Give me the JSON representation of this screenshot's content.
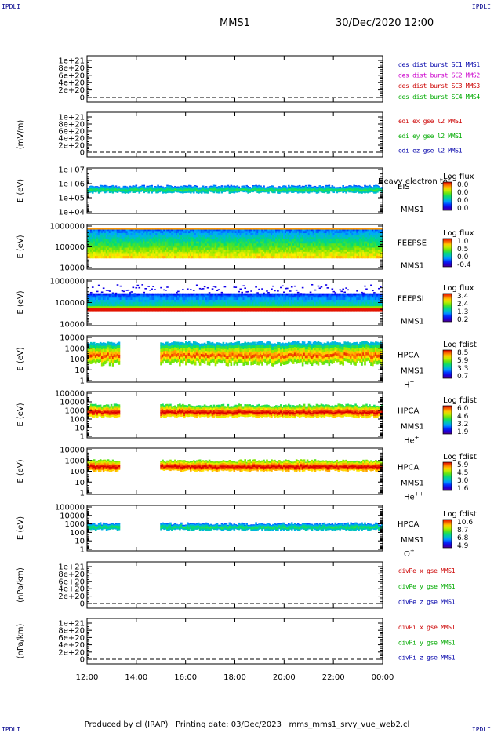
{
  "corner_label": "IPDLI",
  "header": {
    "mission": "MMS1",
    "datetime": "30/Dec/2020 12:00"
  },
  "footer": {
    "text": "Produced by cl (IRAP)   Printing date: 03/Dec/2023   mms_mms1_srvy_vue_web2.cl"
  },
  "chart_data": {
    "type": "heatmap",
    "x_ticks": [
      "12:00",
      "14:00",
      "16:00",
      "18:00",
      "20:00",
      "22:00",
      "00:00"
    ],
    "panels": [
      {
        "kind": "line",
        "ylabel": "",
        "yticks": [
          "1e+21",
          "8e+20",
          "6e+20",
          "4e+20",
          "2e+20",
          "0"
        ],
        "legend": [
          {
            "text": "des dist burst SC1 MMS1",
            "color": "#0000aa"
          },
          {
            "text": "des dist burst SC2 MMS2",
            "color": "#cc00cc"
          },
          {
            "text": "des dist burst SC3 MMS3",
            "color": "#cc0000"
          },
          {
            "text": "des dist burst SC4 MMS4",
            "color": "#00aa00"
          }
        ]
      },
      {
        "kind": "line",
        "ylabel": "(mV/m)",
        "yticks": [
          "1e+21",
          "8e+20",
          "6e+20",
          "4e+20",
          "2e+20",
          "0"
        ],
        "legend": [
          {
            "text": "edi ex gse l2 MMS1",
            "color": "#cc0000"
          },
          {
            "text": "edi ey gse l2 MMS1",
            "color": "#00aa00"
          },
          {
            "text": "edi ez gse l2 MMS1",
            "color": "#0000aa"
          }
        ]
      },
      {
        "kind": "spec",
        "ylabel": "E (eV)",
        "yticks": [
          "1e+07",
          "1e+06",
          "1e+05",
          "1e+04"
        ],
        "inst": "EIS",
        "sc": "MMS1",
        "species": "",
        "extra": "Heavy electron tof",
        "cbar_title": "Log flux",
        "cbar_ticks": [
          "0.0",
          "0.0",
          "0.0",
          "0.0"
        ],
        "fill": [],
        "gaps": []
      },
      {
        "kind": "spec",
        "ylabel": "E (eV)",
        "yticks": [
          "1000000",
          "100000",
          "10000"
        ],
        "inst": "FEEPSE",
        "sc": "MMS1",
        "species": "",
        "extra": "",
        "cbar_title": "Log flux",
        "cbar_ticks": [
          "1.0",
          "0.5",
          "0.0",
          "-0.4"
        ],
        "fill": [
          0.0,
          0.14
        ],
        "gaps": []
      },
      {
        "kind": "spec",
        "ylabel": "E (eV)",
        "yticks": [
          "1000000",
          "100000",
          "10000"
        ],
        "inst": "FEEPSI",
        "sc": "MMS1",
        "species": "",
        "extra": "",
        "cbar_title": "Log flux",
        "cbar_ticks": [
          "3.4",
          "2.4",
          "1.3",
          "0.2"
        ],
        "fill": [
          0.0,
          0.14
        ],
        "gaps": []
      },
      {
        "kind": "spec",
        "ylabel": "E (eV)",
        "yticks": [
          "10000",
          "1000",
          "100",
          "10",
          "1"
        ],
        "inst": "HPCA",
        "sc": "MMS1",
        "species": "H",
        "species_sup": "+",
        "extra": "",
        "cbar_title": "Log fdist",
        "cbar_ticks": [
          "8.5",
          "5.9",
          "3.3",
          "0.7"
        ],
        "fill": [
          0.0,
          0.0
        ],
        "gaps": [
          [
            0.11,
            0.245
          ]
        ]
      },
      {
        "kind": "spec",
        "ylabel": "E (eV)",
        "yticks": [
          "100000",
          "10000",
          "1000",
          "100",
          "10",
          "1"
        ],
        "inst": "HPCA",
        "sc": "MMS1",
        "species": "He",
        "species_sup": "+",
        "extra": "",
        "cbar_title": "Log fdist",
        "cbar_ticks": [
          "6.0",
          "4.6",
          "3.2",
          "1.9"
        ],
        "fill": [
          0.0,
          0.0
        ],
        "gaps": [
          [
            0.11,
            0.245
          ]
        ]
      },
      {
        "kind": "spec",
        "ylabel": "E (eV)",
        "yticks": [
          "10000",
          "1000",
          "100",
          "10",
          "1"
        ],
        "inst": "HPCA",
        "sc": "MMS1",
        "species": "He",
        "species_sup": "++",
        "extra": "",
        "cbar_title": "Log fdist",
        "cbar_ticks": [
          "5.9",
          "4.5",
          "3.0",
          "1.6"
        ],
        "fill": [
          0.0,
          0.0
        ],
        "gaps": [
          [
            0.11,
            0.245
          ]
        ]
      },
      {
        "kind": "spec",
        "ylabel": "E (eV)",
        "yticks": [
          "100000",
          "10000",
          "1000",
          "100",
          "10",
          "1"
        ],
        "inst": "HPCA",
        "sc": "MMS1",
        "species": "O",
        "species_sup": "+",
        "extra": "",
        "cbar_title": "Log fdist",
        "cbar_ticks": [
          "10.6",
          "8.7",
          "6.8",
          "4.9"
        ],
        "fill": [
          0.0,
          0.0
        ],
        "gaps": [
          [
            0.11,
            0.245
          ]
        ]
      },
      {
        "kind": "line",
        "ylabel": "(nPa/km)",
        "yticks": [
          "1e+21",
          "8e+20",
          "6e+20",
          "4e+20",
          "2e+20",
          "0"
        ],
        "legend": [
          {
            "text": "divPe x gse MMS1",
            "color": "#cc0000"
          },
          {
            "text": "divPe y gse MMS1",
            "color": "#00aa00"
          },
          {
            "text": "divPe z gse MMS1",
            "color": "#0000aa"
          }
        ]
      },
      {
        "kind": "line",
        "ylabel": "(nPa/km)",
        "yticks": [
          "1e+21",
          "8e+20",
          "6e+20",
          "4e+20",
          "2e+20",
          "0"
        ],
        "legend": [
          {
            "text": "divPi x gse MMS1",
            "color": "#cc0000"
          },
          {
            "text": "divPi y gse MMS1",
            "color": "#00aa00"
          },
          {
            "text": "divPi z gse MMS1",
            "color": "#0000aa"
          }
        ]
      }
    ]
  }
}
